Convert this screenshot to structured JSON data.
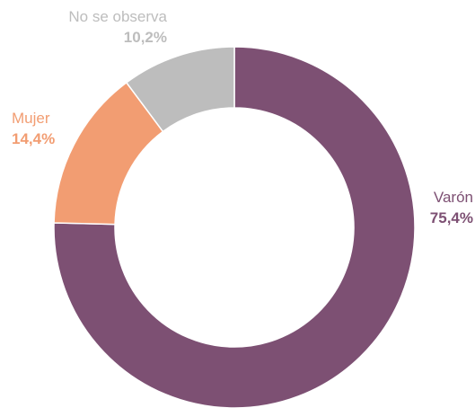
{
  "chart_data": {
    "type": "pie",
    "donut": true,
    "start": "top",
    "direction": "clockwise",
    "slices": [
      {
        "label": "Varón",
        "value": 75.4,
        "value_text": "75,4%",
        "color": "#7d5073"
      },
      {
        "label": "Mujer",
        "value": 14.4,
        "value_text": "14,4%",
        "color": "#f29d72"
      },
      {
        "label": "No se observa",
        "value": 10.2,
        "value_text": "10,2%",
        "color": "#bdbdbd"
      }
    ]
  }
}
